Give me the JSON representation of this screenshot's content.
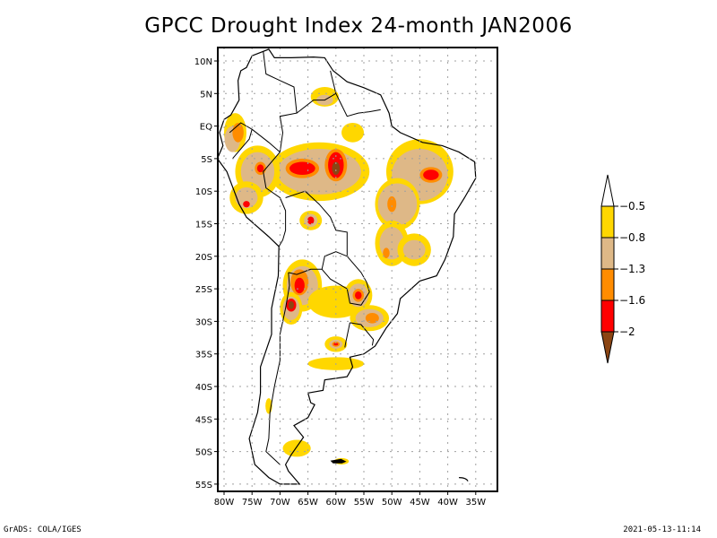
{
  "title": "GPCC Drought Index 24-month JAN2006",
  "footer": {
    "left": "GrADS: COLA/IGES",
    "right": "2021-05-13-11:14"
  },
  "map": {
    "region": "South America",
    "lon_range": [
      -81,
      -31
    ],
    "lat_range": [
      12,
      -56
    ],
    "lon_ticks": [
      {
        "value": -80,
        "label": "80W"
      },
      {
        "value": -75,
        "label": "75W"
      },
      {
        "value": -70,
        "label": "70W"
      },
      {
        "value": -65,
        "label": "65W"
      },
      {
        "value": -60,
        "label": "60W"
      },
      {
        "value": -55,
        "label": "55W"
      },
      {
        "value": -50,
        "label": "50W"
      },
      {
        "value": -45,
        "label": "45W"
      },
      {
        "value": -40,
        "label": "40W"
      },
      {
        "value": -35,
        "label": "35W"
      }
    ],
    "lat_ticks": [
      {
        "value": 10,
        "label": "10N"
      },
      {
        "value": 5,
        "label": "5N"
      },
      {
        "value": 0,
        "label": "EQ"
      },
      {
        "value": -5,
        "label": "5S"
      },
      {
        "value": -10,
        "label": "10S"
      },
      {
        "value": -15,
        "label": "15S"
      },
      {
        "value": -20,
        "label": "20S"
      },
      {
        "value": -25,
        "label": "25S"
      },
      {
        "value": -30,
        "label": "30S"
      },
      {
        "value": -35,
        "label": "35S"
      },
      {
        "value": -40,
        "label": "40S"
      },
      {
        "value": -45,
        "label": "45S"
      },
      {
        "value": -50,
        "label": "50S"
      },
      {
        "value": -55,
        "label": "55S"
      }
    ],
    "grid": true
  },
  "legend": {
    "placement": "right",
    "levels": [
      {
        "label": "-0.5",
        "color": "#ffffff",
        "range": "> -0.5"
      },
      {
        "label": "-0.8",
        "color": "#ffd700",
        "range": "-0.8 to -0.5"
      },
      {
        "label": "-1.3",
        "color": "#deb887",
        "range": "-1.3 to -0.8"
      },
      {
        "label": "-1.6",
        "color": "#ff8c00",
        "range": "-1.6 to -1.3"
      },
      {
        "label": "-2",
        "color": "#ff0000",
        "range": "-2 to -1.6"
      },
      {
        "label": "",
        "color": "#8b4513",
        "range": "< -2"
      }
    ]
  },
  "colors": {
    "yellow": "#ffd700",
    "tan": "#deb887",
    "orange": "#ff8c00",
    "red": "#ff0000",
    "brown": "#8b4513",
    "grid": "#a0a0a0"
  },
  "drought_regions": [
    {
      "name": "northwest-amazon",
      "lon": -66,
      "lat": -6,
      "level": 4
    },
    {
      "name": "central-amazon",
      "lon": -60,
      "lat": -6,
      "level": 5
    },
    {
      "name": "peru-amazon",
      "lon": -73.5,
      "lat": -6.5,
      "level": 4
    },
    {
      "name": "northeast-brazil",
      "lon": -43,
      "lat": -7.5,
      "level": 4
    },
    {
      "name": "bolivia-spot",
      "lon": -64.5,
      "lat": -14.5,
      "level": 5
    },
    {
      "name": "northern-argentina",
      "lon": -66.5,
      "lat": -24.5,
      "level": 4
    },
    {
      "name": "argentina-andes",
      "lon": -68,
      "lat": -27.5,
      "level": 5
    },
    {
      "name": "paraguay-spot",
      "lon": -56,
      "lat": -26,
      "level": 4
    },
    {
      "name": "southern-brazil",
      "lon": -53.5,
      "lat": -29.5,
      "level": 3
    },
    {
      "name": "pampas-spot",
      "lon": -60,
      "lat": -33.5,
      "level": 4
    }
  ]
}
